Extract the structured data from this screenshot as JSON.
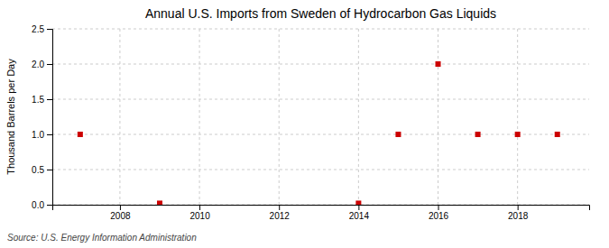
{
  "chart_data": {
    "type": "scatter",
    "title": "Annual U.S. Imports from Sweden of Hydrocarbon Gas Liquids",
    "y_label": "Thousand Barrels per Day",
    "annotations": [
      "Source: U.S. Energy Information Administration"
    ],
    "x": [
      2007,
      2009,
      2014,
      2015,
      2016,
      2017,
      2018,
      2019
    ],
    "values": [
      1.0,
      0.02,
      0.02,
      1.0,
      2.0,
      1.0,
      1.0,
      1.0
    ],
    "color": "#cc0000",
    "marker": "square",
    "xlim": [
      2006.3,
      2019.8
    ],
    "ylim": [
      0.0,
      2.5
    ],
    "xticks": [
      2008,
      2010,
      2012,
      2014,
      2016,
      2018
    ],
    "yticks": [
      {
        "value": 0.0,
        "label": "0.0"
      },
      0.5,
      {
        "value": 1.0,
        "label": "1.0"
      },
      1.5,
      {
        "value": 2.0,
        "label": "2.0"
      },
      2.5
    ],
    "grid": true
  }
}
